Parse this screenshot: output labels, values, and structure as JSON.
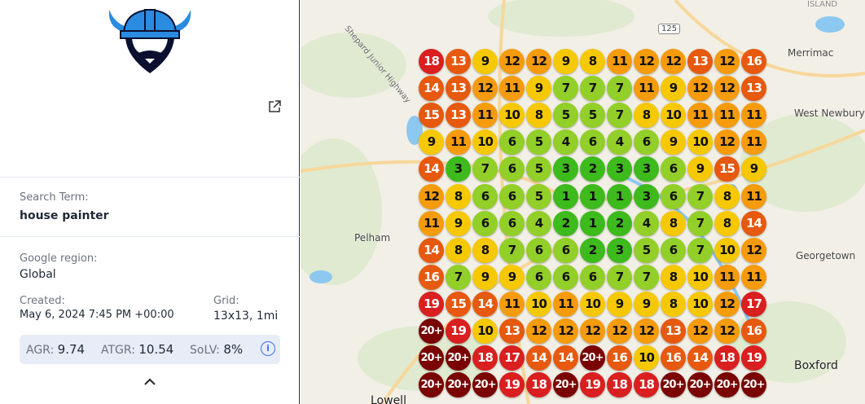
{
  "sidebar": {
    "logo": "viking-logo",
    "search_term_label": "Search Term:",
    "search_term": "house painter",
    "region_label": "Google region:",
    "region": "Global",
    "created_label": "Created:",
    "created": "May 6, 2024 7:45 PM +00:00",
    "grid_label": "Grid:",
    "grid": "13x13, 1mi",
    "stats": {
      "agr_label": "AGR:",
      "agr": "9.74",
      "atgr_label": "ATGR:",
      "atgr": "10.54",
      "solv_label": "SoLV:",
      "solv": "8%"
    }
  },
  "map": {
    "places": [
      "Merrimac",
      "West Newbury",
      "Georgetown",
      "Pelham",
      "Boxford",
      "Lowell",
      "ISLAND",
      "Shepard Junior Highway"
    ],
    "route_shield": "125",
    "rank_grid": [
      [
        "18",
        "13",
        "9",
        "12",
        "12",
        "9",
        "8",
        "11",
        "12",
        "12",
        "13",
        "12",
        "16"
      ],
      [
        "14",
        "13",
        "12",
        "11",
        "9",
        "7",
        "7",
        "7",
        "11",
        "9",
        "12",
        "12",
        "13"
      ],
      [
        "15",
        "13",
        "11",
        "10",
        "8",
        "5",
        "5",
        "7",
        "8",
        "10",
        "11",
        "11",
        "11"
      ],
      [
        "9",
        "11",
        "10",
        "6",
        "5",
        "4",
        "6",
        "4",
        "6",
        "9",
        "10",
        "12",
        "11"
      ],
      [
        "14",
        "3",
        "7",
        "6",
        "5",
        "3",
        "2",
        "3",
        "3",
        "6",
        "9",
        "15",
        "9"
      ],
      [
        "12",
        "8",
        "6",
        "6",
        "5",
        "1",
        "1",
        "1",
        "3",
        "6",
        "7",
        "8",
        "11"
      ],
      [
        "11",
        "9",
        "6",
        "6",
        "4",
        "2",
        "1",
        "2",
        "4",
        "8",
        "7",
        "8",
        "14"
      ],
      [
        "14",
        "8",
        "8",
        "7",
        "6",
        "6",
        "2",
        "3",
        "5",
        "6",
        "7",
        "10",
        "12"
      ],
      [
        "16",
        "7",
        "9",
        "9",
        "6",
        "6",
        "6",
        "7",
        "7",
        "8",
        "10",
        "11",
        "11"
      ],
      [
        "19",
        "15",
        "14",
        "11",
        "10",
        "11",
        "10",
        "9",
        "9",
        "8",
        "10",
        "12",
        "17"
      ],
      [
        "20+",
        "19",
        "10",
        "13",
        "12",
        "12",
        "12",
        "12",
        "12",
        "13",
        "12",
        "12",
        "16"
      ],
      [
        "20+",
        "20+",
        "18",
        "17",
        "14",
        "14",
        "20+",
        "16",
        "10",
        "16",
        "14",
        "18",
        "19"
      ],
      [
        "20+",
        "20+",
        "20+",
        "19",
        "18",
        "20+",
        "19",
        "18",
        "18",
        "20+",
        "20+",
        "20+",
        "20+"
      ]
    ],
    "colors": {
      "top3": "#3dba1c",
      "r4_7": "#92cf28",
      "r8_10": "#f6c800",
      "r11_12": "#f59b0c",
      "r13_16": "#e6590e",
      "r17_19": "#d91f1f",
      "r20plus": "#7a0202"
    }
  }
}
